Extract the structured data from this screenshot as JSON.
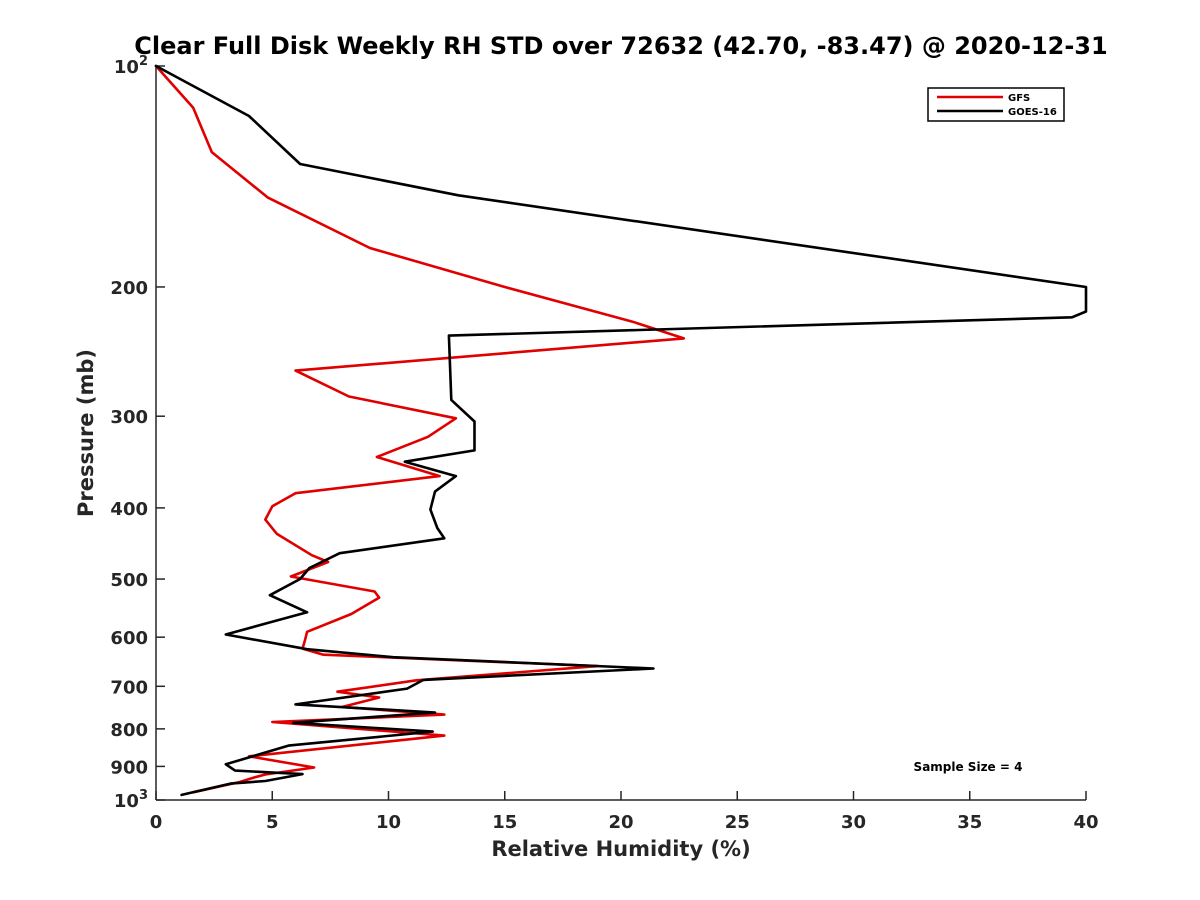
{
  "chart_data": {
    "type": "line",
    "title": "Clear Full Disk Weekly RH STD over 72632 (42.70, -83.47) @ 2020-12-31",
    "xlabel": "Relative Humidity (%)",
    "ylabel": "Pressure (mb)",
    "xlim": [
      0,
      40
    ],
    "ylim": [
      100,
      1000
    ],
    "yscale": "log",
    "y_reversed": true,
    "grid": false,
    "legend_position": "top-right",
    "x_ticks": [
      "0",
      "5",
      "10",
      "15",
      "20",
      "25",
      "30",
      "35",
      "40"
    ],
    "y_ticks": [
      {
        "value": 100,
        "base": "10",
        "exp": "2"
      },
      {
        "value": 200,
        "label": "200"
      },
      {
        "value": 300,
        "label": "300"
      },
      {
        "value": 400,
        "label": "400"
      },
      {
        "value": 500,
        "label": "500"
      },
      {
        "value": 600,
        "label": "600"
      },
      {
        "value": 700,
        "label": "700"
      },
      {
        "value": 800,
        "label": "800"
      },
      {
        "value": 900,
        "label": "900"
      },
      {
        "value": 1000,
        "base": "10",
        "exp": "3"
      }
    ],
    "annotation": "Sample Size = 4",
    "series": [
      {
        "name": "GFS",
        "color": "#e00000",
        "x": [
          0.0,
          1.6,
          2.4,
          4.8,
          9.2,
          15.0,
          20.5,
          22.7,
          6.0,
          8.3,
          12.9,
          11.7,
          9.5,
          12.2,
          6.0,
          5.0,
          4.7,
          5.2,
          6.7,
          7.4,
          5.8,
          9.4,
          9.6,
          8.4,
          6.5,
          6.4,
          6.3,
          7.2,
          19.0,
          11.2,
          7.8,
          9.6,
          8.0,
          12.4,
          5.0,
          12.4,
          4.0,
          6.8,
          4.7,
          4.2,
          3.6,
          1.6
        ],
        "y": [
          100,
          114,
          131,
          151,
          177,
          200,
          223,
          235,
          260,
          282,
          302,
          320,
          341,
          362,
          382,
          398,
          415,
          434,
          464,
          474,
          496,
          520,
          530,
          558,
          590,
          607,
          622,
          634,
          657,
          687,
          712,
          725,
          747,
          765,
          783,
          817,
          872,
          903,
          923,
          932,
          945,
          976
        ]
      },
      {
        "name": "GOES-16",
        "color": "#000000",
        "x": [
          0.0,
          4.0,
          6.2,
          13.0,
          40.0,
          40.0,
          39.4,
          12.6,
          12.7,
          13.7,
          13.7,
          10.7,
          12.9,
          12.0,
          11.8,
          12.1,
          12.4,
          7.9,
          6.6,
          6.2,
          4.9,
          6.5,
          4.8,
          3.0,
          6.5,
          10.2,
          21.4,
          11.5,
          10.8,
          6.0,
          12.0,
          5.9,
          11.9,
          5.7,
          3.0,
          3.4,
          6.3,
          4.7,
          3.2,
          1.1
        ],
        "y": [
          100,
          117,
          136,
          150,
          200,
          216,
          220,
          233,
          285,
          305,
          334,
          346,
          362,
          380,
          402,
          426,
          440,
          461,
          483,
          500,
          526,
          555,
          574,
          595,
          623,
          639,
          662,
          686,
          705,
          741,
          760,
          785,
          807,
          843,
          894,
          912,
          922,
          942,
          950,
          984
        ]
      }
    ]
  }
}
